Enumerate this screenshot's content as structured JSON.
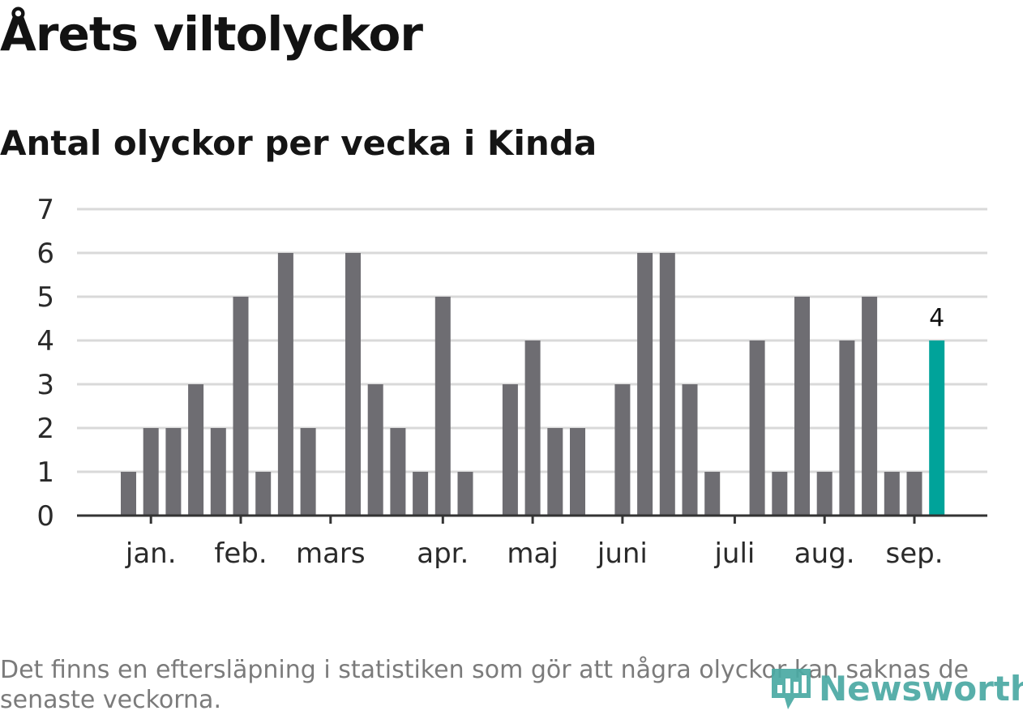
{
  "title": "Årets viltolyckor",
  "subtitle": "Antal olyckor per vecka i Kinda",
  "footnote": "Det finns en eftersläpning i statistiken som gör att några olyckor kan saknas de senaste veckorna.",
  "logo_text": "Newsworthy",
  "colors": {
    "bar": "#6e6d72",
    "highlight": "#00a39a",
    "grid": "#d9d9d9",
    "axis": "#333333",
    "logo": "#4aa9a3"
  },
  "chart_data": {
    "type": "bar",
    "title": "Årets viltolyckor",
    "subtitle": "Antal olyckor per vecka i Kinda",
    "ylim": [
      0,
      7
    ],
    "y_ticks": [
      0,
      1,
      2,
      3,
      4,
      5,
      6,
      7
    ],
    "weeks": [
      1,
      2,
      3,
      4,
      5,
      6,
      7,
      8,
      9,
      10,
      11,
      12,
      13,
      14,
      15,
      16,
      17,
      18,
      19,
      20,
      21,
      22,
      23,
      24,
      25,
      26,
      27,
      28,
      29,
      30,
      31,
      32,
      33,
      34,
      35,
      36,
      37,
      38,
      39,
      40,
      41
    ],
    "values": [
      0,
      1,
      2,
      2,
      3,
      2,
      5,
      1,
      6,
      2,
      0,
      6,
      3,
      2,
      1,
      5,
      1,
      0,
      3,
      4,
      2,
      2,
      0,
      3,
      6,
      6,
      3,
      1,
      0,
      4,
      1,
      5,
      1,
      4,
      5,
      1,
      1,
      4,
      null,
      null,
      null
    ],
    "highlight_week": 38,
    "highlight_label": "4",
    "month_labels": [
      {
        "label": "jan.",
        "week": 3
      },
      {
        "label": "feb.",
        "week": 7
      },
      {
        "label": "mars",
        "week": 11
      },
      {
        "label": "apr.",
        "week": 16
      },
      {
        "label": "maj",
        "week": 20
      },
      {
        "label": "juni",
        "week": 24
      },
      {
        "label": "juli",
        "week": 29
      },
      {
        "label": "aug.",
        "week": 33
      },
      {
        "label": "sep.",
        "week": 37
      }
    ],
    "grid": true
  }
}
